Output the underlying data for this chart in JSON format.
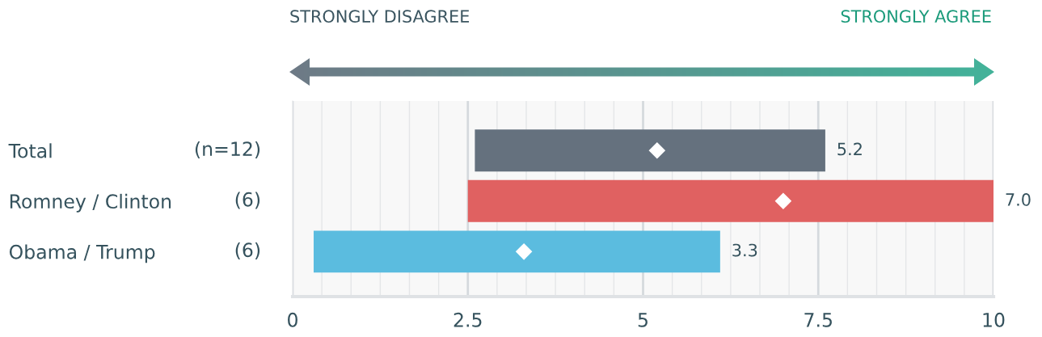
{
  "chart_data": {
    "type": "bar",
    "orientation": "horizontal",
    "categories": [
      "Total",
      "Romney / Clinton",
      "Obama / Trump"
    ],
    "series": [
      {
        "base": [
          2.6,
          2.5,
          0.3
        ],
        "values": [
          5.0,
          7.5,
          5.8
        ],
        "colors": [
          "#65717e",
          "#e06161",
          "#5bbcdf"
        ]
      },
      {
        "type": "scatter",
        "values": [
          5.2,
          7.0,
          3.3
        ],
        "color": "#ffffff",
        "marker": "diamond"
      }
    ],
    "xlim": [
      0,
      10
    ],
    "xticks": [
      0,
      2.5,
      5,
      7.5,
      10
    ],
    "grid": "x",
    "annotations": [
      "STRONGLY DISAGREE",
      "STRONGLY AGREE",
      "(n=12)",
      "(6)",
      "(6)",
      {
        "text": "5.2",
        "x": 7.6,
        "y": "Total"
      },
      {
        "text": "7.0",
        "x": 10,
        "y": "Romney / Clinton"
      },
      {
        "text": "3.3",
        "x": 6.1,
        "y": "Obama / Trump"
      }
    ]
  }
}
